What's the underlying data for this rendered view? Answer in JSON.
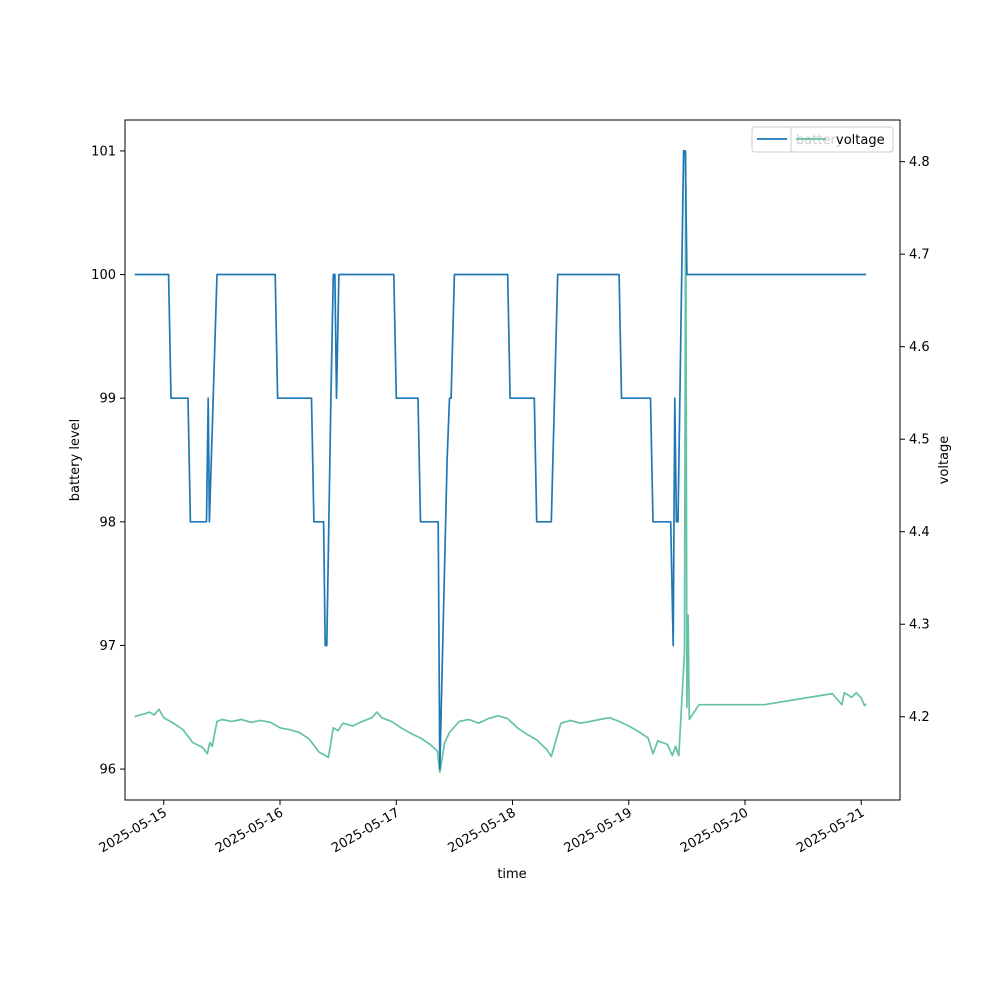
{
  "chart_data": {
    "type": "line",
    "title": "",
    "xlabel": "time",
    "ylabel": "battery level",
    "y2label": "voltage",
    "xlim": [
      "2025-05-14T16:00",
      "2025-05-21T08:00"
    ],
    "ylim": [
      95.75,
      101.25
    ],
    "y2lim": [
      4.11,
      4.845
    ],
    "x_ticks": [
      "2025-05-15",
      "2025-05-16",
      "2025-05-17",
      "2025-05-18",
      "2025-05-19",
      "2025-05-20",
      "2025-05-21"
    ],
    "y_ticks": [
      "96",
      "97",
      "98",
      "99",
      "100",
      "101"
    ],
    "y2_ticks": [
      "4.2",
      "4.3",
      "4.4",
      "4.5",
      "4.6",
      "4.7",
      "4.8"
    ],
    "legend_placement": "upper-right",
    "series": [
      {
        "name": "battery",
        "axis": "left",
        "color": "#1f77b4",
        "points": [
          [
            "2025-05-14T18:00",
            100
          ],
          [
            "2025-05-15T01:00",
            100
          ],
          [
            "2025-05-15T01:30",
            99
          ],
          [
            "2025-05-15T05:00",
            99
          ],
          [
            "2025-05-15T05:30",
            98
          ],
          [
            "2025-05-15T08:50",
            98
          ],
          [
            "2025-05-15T09:10",
            99
          ],
          [
            "2025-05-15T09:25",
            98
          ],
          [
            "2025-05-15T11:00",
            100
          ],
          [
            "2025-05-15T23:00",
            100
          ],
          [
            "2025-05-15T23:30",
            99
          ],
          [
            "2025-05-16T06:30",
            99
          ],
          [
            "2025-05-16T07:00",
            98
          ],
          [
            "2025-05-16T09:00",
            98
          ],
          [
            "2025-05-16T09:20",
            97
          ],
          [
            "2025-05-16T09:40",
            97
          ],
          [
            "2025-05-16T10:30",
            99
          ],
          [
            "2025-05-16T11:00",
            100
          ],
          [
            "2025-05-16T11:20",
            100
          ],
          [
            "2025-05-16T11:40",
            99
          ],
          [
            "2025-05-16T12:10",
            100
          ],
          [
            "2025-05-16T23:30",
            100
          ],
          [
            "2025-05-17T00:00",
            99
          ],
          [
            "2025-05-17T04:30",
            99
          ],
          [
            "2025-05-17T05:00",
            98
          ],
          [
            "2025-05-17T08:40",
            98
          ],
          [
            "2025-05-17T09:00",
            96
          ],
          [
            "2025-05-17T10:30",
            98.5
          ],
          [
            "2025-05-17T11:00",
            99
          ],
          [
            "2025-05-17T11:20",
            99
          ],
          [
            "2025-05-17T12:00",
            100
          ],
          [
            "2025-05-17T23:00",
            100
          ],
          [
            "2025-05-17T23:30",
            99
          ],
          [
            "2025-05-18T04:30",
            99
          ],
          [
            "2025-05-18T05:00",
            98
          ],
          [
            "2025-05-18T08:00",
            98
          ],
          [
            "2025-05-18T09:20",
            100
          ],
          [
            "2025-05-18T22:00",
            100
          ],
          [
            "2025-05-18T22:30",
            99
          ],
          [
            "2025-05-19T04:30",
            99
          ],
          [
            "2025-05-19T05:00",
            98
          ],
          [
            "2025-05-19T08:40",
            98
          ],
          [
            "2025-05-19T09:10",
            97
          ],
          [
            "2025-05-19T09:30",
            99
          ],
          [
            "2025-05-19T09:50",
            98
          ],
          [
            "2025-05-19T10:10",
            98
          ],
          [
            "2025-05-19T11:20",
            101
          ],
          [
            "2025-05-19T11:40",
            101
          ],
          [
            "2025-05-19T12:00",
            100
          ],
          [
            "2025-05-21T01:00",
            100
          ]
        ]
      },
      {
        "name": "voltage",
        "axis": "right",
        "color": "#66c2a5",
        "points": [
          [
            "2025-05-14T18:00",
            4.2
          ],
          [
            "2025-05-14T19:00",
            4.202
          ],
          [
            "2025-05-14T20:00",
            4.203
          ],
          [
            "2025-05-14T21:00",
            4.205
          ],
          [
            "2025-05-14T22:00",
            4.202
          ],
          [
            "2025-05-14T23:00",
            4.208
          ],
          [
            "2025-05-15T00:00",
            4.199
          ],
          [
            "2025-05-15T02:00",
            4.193
          ],
          [
            "2025-05-15T04:00",
            4.186
          ],
          [
            "2025-05-15T06:00",
            4.172
          ],
          [
            "2025-05-15T08:00",
            4.167
          ],
          [
            "2025-05-15T09:00",
            4.16
          ],
          [
            "2025-05-15T09:30",
            4.172
          ],
          [
            "2025-05-15T10:00",
            4.168
          ],
          [
            "2025-05-15T11:00",
            4.195
          ],
          [
            "2025-05-15T12:00",
            4.197
          ],
          [
            "2025-05-15T14:00",
            4.195
          ],
          [
            "2025-05-15T16:00",
            4.197
          ],
          [
            "2025-05-15T18:00",
            4.194
          ],
          [
            "2025-05-15T20:00",
            4.196
          ],
          [
            "2025-05-15T22:00",
            4.194
          ],
          [
            "2025-05-16T00:00",
            4.188
          ],
          [
            "2025-05-16T02:00",
            4.186
          ],
          [
            "2025-05-16T04:00",
            4.183
          ],
          [
            "2025-05-16T06:00",
            4.176
          ],
          [
            "2025-05-16T08:00",
            4.162
          ],
          [
            "2025-05-16T10:00",
            4.156
          ],
          [
            "2025-05-16T11:00",
            4.188
          ],
          [
            "2025-05-16T12:00",
            4.185
          ],
          [
            "2025-05-16T13:00",
            4.193
          ],
          [
            "2025-05-16T15:00",
            4.19
          ],
          [
            "2025-05-16T17:00",
            4.195
          ],
          [
            "2025-05-16T19:00",
            4.199
          ],
          [
            "2025-05-16T20:00",
            4.205
          ],
          [
            "2025-05-16T21:00",
            4.199
          ],
          [
            "2025-05-16T23:00",
            4.195
          ],
          [
            "2025-05-17T01:00",
            4.188
          ],
          [
            "2025-05-17T03:00",
            4.182
          ],
          [
            "2025-05-17T05:00",
            4.177
          ],
          [
            "2025-05-17T07:00",
            4.17
          ],
          [
            "2025-05-17T08:30",
            4.163
          ],
          [
            "2025-05-17T09:00",
            4.14
          ],
          [
            "2025-05-17T10:00",
            4.172
          ],
          [
            "2025-05-17T11:00",
            4.183
          ],
          [
            "2025-05-17T13:00",
            4.195
          ],
          [
            "2025-05-17T15:00",
            4.197
          ],
          [
            "2025-05-17T17:00",
            4.193
          ],
          [
            "2025-05-17T19:00",
            4.198
          ],
          [
            "2025-05-17T21:00",
            4.201
          ],
          [
            "2025-05-17T23:00",
            4.198
          ],
          [
            "2025-05-18T01:00",
            4.188
          ],
          [
            "2025-05-18T03:00",
            4.181
          ],
          [
            "2025-05-18T05:00",
            4.175
          ],
          [
            "2025-05-18T07:00",
            4.165
          ],
          [
            "2025-05-18T08:00",
            4.157
          ],
          [
            "2025-05-18T10:00",
            4.193
          ],
          [
            "2025-05-18T12:00",
            4.196
          ],
          [
            "2025-05-18T14:00",
            4.193
          ],
          [
            "2025-05-18T16:00",
            4.195
          ],
          [
            "2025-05-18T18:00",
            4.197
          ],
          [
            "2025-05-18T20:00",
            4.199
          ],
          [
            "2025-05-18T22:00",
            4.195
          ],
          [
            "2025-05-19T00:00",
            4.19
          ],
          [
            "2025-05-19T02:00",
            4.184
          ],
          [
            "2025-05-19T04:00",
            4.177
          ],
          [
            "2025-05-19T05:00",
            4.16
          ],
          [
            "2025-05-19T06:00",
            4.174
          ],
          [
            "2025-05-19T08:00",
            4.17
          ],
          [
            "2025-05-19T09:00",
            4.158
          ],
          [
            "2025-05-19T09:40",
            4.168
          ],
          [
            "2025-05-19T10:20",
            4.158
          ],
          [
            "2025-05-19T11:30",
            4.27
          ],
          [
            "2025-05-19T11:45",
            4.81
          ],
          [
            "2025-05-19T12:00",
            4.21
          ],
          [
            "2025-05-19T12:15",
            4.31
          ],
          [
            "2025-05-19T12:30",
            4.197
          ],
          [
            "2025-05-19T13:30",
            4.205
          ],
          [
            "2025-05-19T14:30",
            4.213
          ],
          [
            "2025-05-20T04:00",
            4.213
          ],
          [
            "2025-05-20T18:00",
            4.225
          ],
          [
            "2025-05-20T20:00",
            4.213
          ],
          [
            "2025-05-20T20:30",
            4.226
          ],
          [
            "2025-05-20T22:00",
            4.221
          ],
          [
            "2025-05-20T23:00",
            4.226
          ],
          [
            "2025-05-21T00:00",
            4.22
          ],
          [
            "2025-05-21T00:40",
            4.212
          ],
          [
            "2025-05-21T01:00",
            4.214
          ]
        ]
      }
    ]
  }
}
